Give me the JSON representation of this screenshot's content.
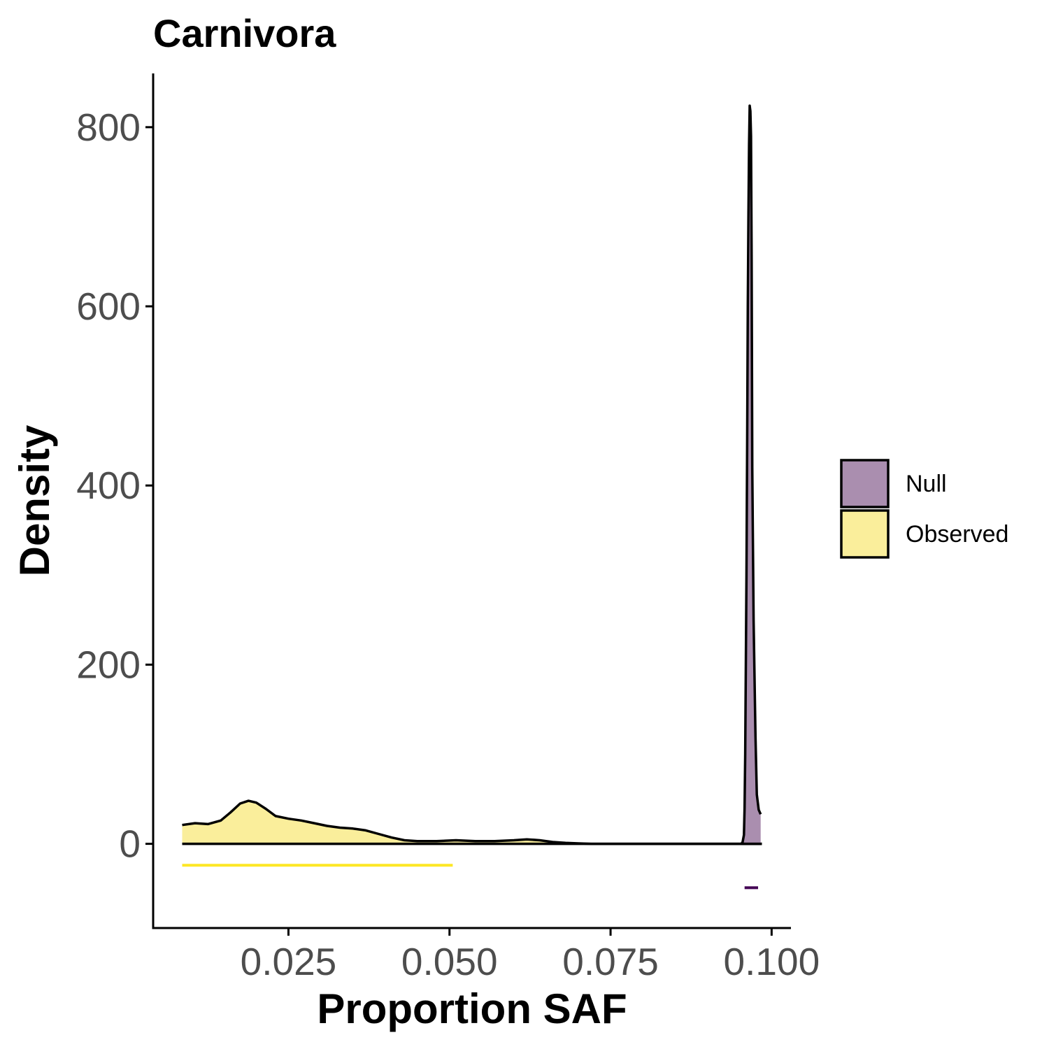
{
  "chart_data": {
    "type": "area",
    "title": "Carnivora",
    "xlabel": "Proportion SAF",
    "ylabel": "Density",
    "xlim": [
      0.004,
      0.103
    ],
    "ylim": [
      -94,
      860
    ],
    "x_ticks": [
      {
        "value": 0.025,
        "label": "0.025"
      },
      {
        "value": 0.05,
        "label": "0.050"
      },
      {
        "value": 0.075,
        "label": "0.075"
      },
      {
        "value": 0.1,
        "label": "0.100"
      }
    ],
    "y_ticks": [
      {
        "value": 0,
        "label": "0"
      },
      {
        "value": 200,
        "label": "200"
      },
      {
        "value": 400,
        "label": "400"
      },
      {
        "value": 600,
        "label": "600"
      },
      {
        "value": 800,
        "label": "800"
      }
    ],
    "grid": false,
    "legend_position": "right",
    "series": [
      {
        "name": "Null",
        "color": "#9b7aa1",
        "rug_color": "#440154",
        "x": [
          0.0953,
          0.0955,
          0.0957,
          0.0958,
          0.0959,
          0.096,
          0.0961,
          0.0962,
          0.0963,
          0.0964,
          0.0965,
          0.0966,
          0.0967,
          0.0968,
          0.0969,
          0.097,
          0.0972,
          0.0975,
          0.0977,
          0.098,
          0.0983
        ],
        "y": [
          0,
          2,
          10,
          40,
          100,
          200,
          300,
          450,
          600,
          700,
          780,
          824,
          818,
          790,
          650,
          420,
          250,
          120,
          55,
          38,
          33
        ],
        "rug_range": [
          0.0958,
          0.0979
        ]
      },
      {
        "name": "Observed",
        "color": "#f9eb8a",
        "rug_color": "#fde725",
        "x": [
          0.0085,
          0.0105,
          0.0125,
          0.0145,
          0.016,
          0.0175,
          0.0188,
          0.02,
          0.0215,
          0.023,
          0.025,
          0.027,
          0.029,
          0.031,
          0.033,
          0.035,
          0.037,
          0.039,
          0.041,
          0.043,
          0.045,
          0.048,
          0.051,
          0.054,
          0.057,
          0.06,
          0.062,
          0.064,
          0.066,
          0.068,
          0.07,
          0.072,
          0.075,
          0.08,
          0.085,
          0.09,
          0.095,
          0.0985
        ],
        "y": [
          21,
          23,
          22,
          26,
          35,
          45,
          48,
          46,
          39,
          31,
          28,
          26,
          23,
          20,
          18,
          17,
          15,
          11,
          7,
          4,
          3,
          3,
          4,
          3,
          3,
          4,
          5,
          4,
          2,
          1,
          0.5,
          0,
          0,
          0,
          0,
          0,
          0,
          0
        ],
        "rug_range": [
          0.0085,
          0.0505
        ]
      }
    ]
  }
}
